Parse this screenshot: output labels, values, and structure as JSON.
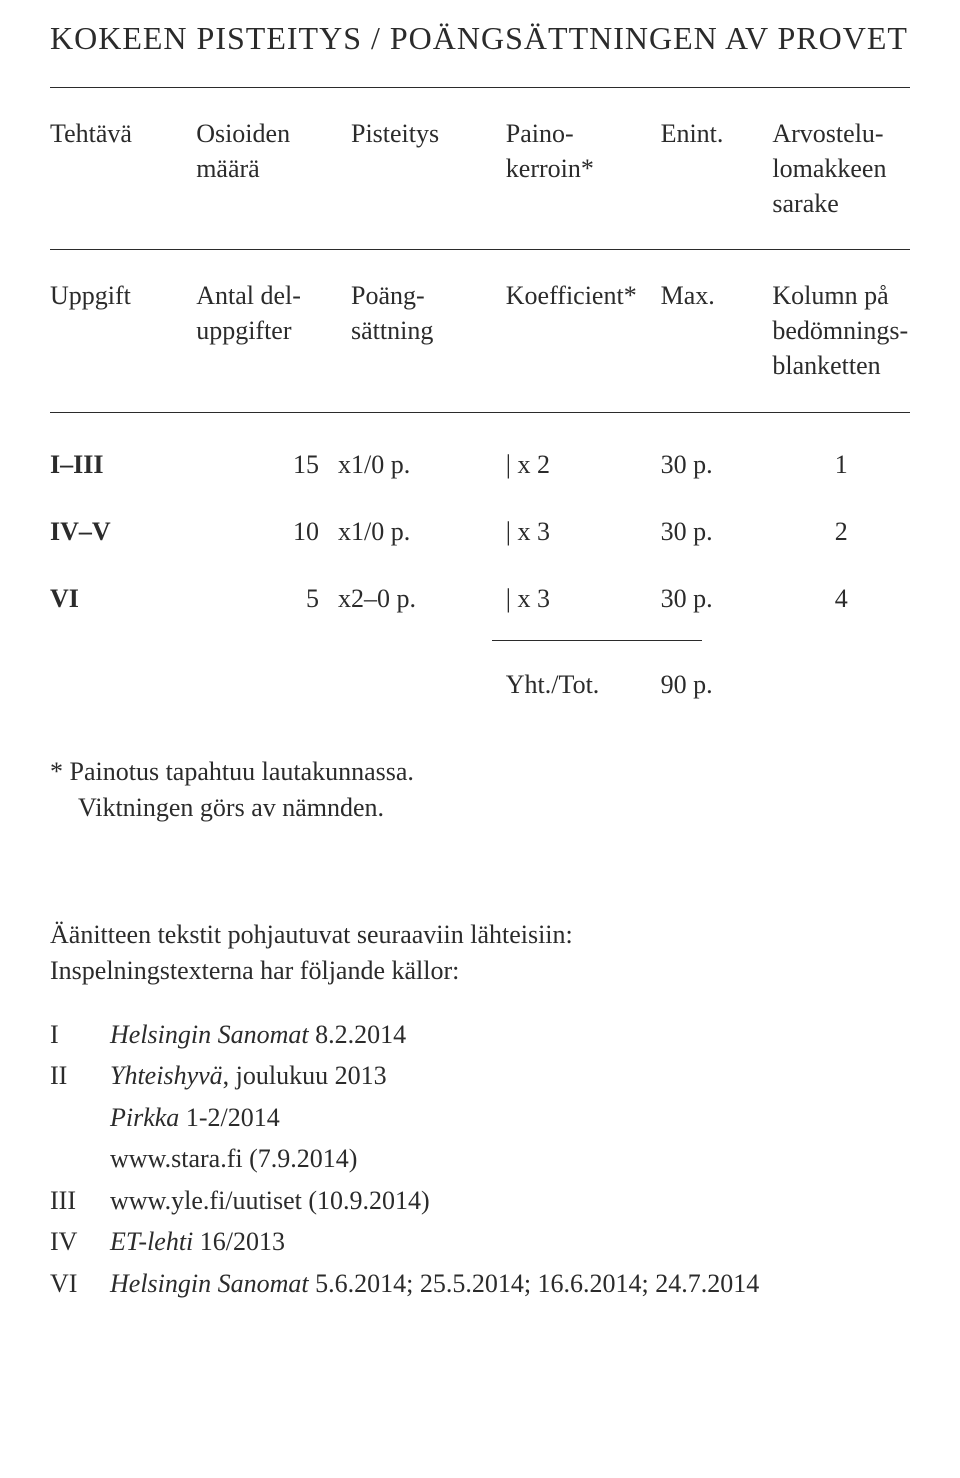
{
  "title": "KOKEEN PISTEITYS  /  POÄNGSÄTTNINGEN AV PROVET",
  "headers_fi": {
    "col1": "Tehtävä",
    "col2": "Osioiden\nmäärä",
    "col3": "Pisteitys",
    "col4": "Paino-\nkerroin*",
    "col5": "Enint.",
    "col6": "Arvostelu-\nlomakkeen\nsarake"
  },
  "headers_sv": {
    "col1": "Uppgift",
    "col2": "Antal del-\nuppgifter",
    "col3": "Poäng-\nsättning",
    "col4": "Koefficient*",
    "col5": "Max.",
    "col6": "Kolumn på\nbedömnings-\nblanketten"
  },
  "rows": [
    {
      "c1": "I–III",
      "c2n": "15",
      "c2x": "x",
      "c3": "1/0 p.",
      "c4": "|  x 2",
      "c5": "30 p.",
      "c6": "1"
    },
    {
      "c1": "IV–V",
      "c2n": "10",
      "c2x": "x",
      "c3": "1/0 p.",
      "c4": "|  x 3",
      "c5": "30 p.",
      "c6": "2"
    },
    {
      "c1": "VI",
      "c2n": "5",
      "c2x": "x",
      "c3": "2–0 p.",
      "c4": "|  x 3",
      "c5": "30 p.",
      "c6": "4"
    }
  ],
  "total": {
    "label": "Yht./Tot.",
    "value": "90 p."
  },
  "footnote": {
    "line1": "*  Painotus tapahtuu lautakunnassa.",
    "line2": "Viktningen görs av nämnden."
  },
  "sources_intro": {
    "line1": "Äänitteen tekstit pohjautuvat seuraaviin lähteisiin:",
    "line2": "Inspelningstexterna har följande källor:"
  },
  "sources": [
    {
      "num": "I",
      "italic": "Helsingin Sanomat",
      "rest": " 8.2.2014"
    },
    {
      "num": "II",
      "italic": "Yhteishyvä",
      "rest": ", joulukuu 2013"
    },
    {
      "num": "",
      "italic": "Pirkka",
      "rest": " 1-2/2014"
    },
    {
      "num": "",
      "italic": "",
      "rest": "www.stara.fi (7.9.2014)"
    },
    {
      "num": "III",
      "italic": "",
      "rest": "www.yle.fi/uutiset (10.9.2014)"
    },
    {
      "num": "IV",
      "italic": "ET-lehti",
      "rest": " 16/2013"
    },
    {
      "num": "VI",
      "italic": "Helsingin Sanomat",
      "rest": " 5.6.2014; 25.5.2014; 16.6.2014; 24.7.2014"
    }
  ]
}
